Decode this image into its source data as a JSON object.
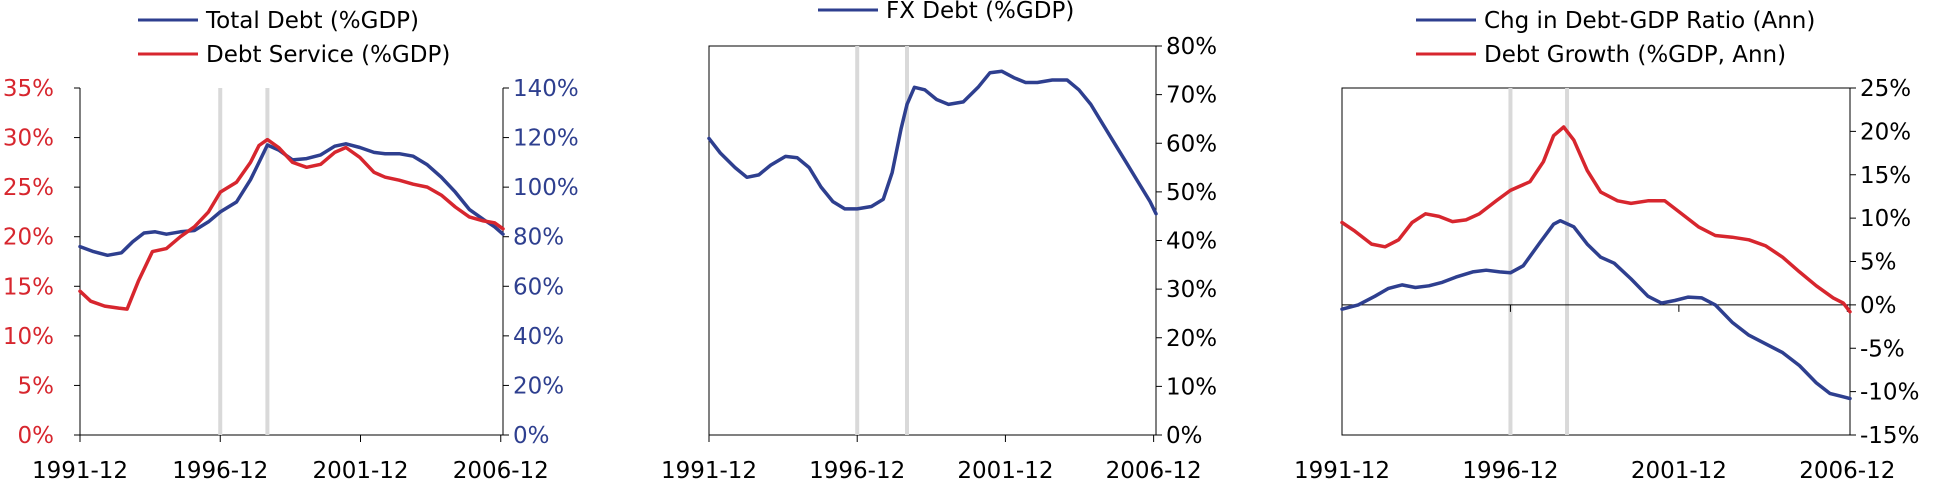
{
  "colors": {
    "blue": "#2E3F8F",
    "red": "#D7262E",
    "axis": "#000000",
    "vline": "#D9D9D9"
  },
  "chart_data": [
    {
      "type": "line",
      "legend_placement": "top",
      "x_ticks": [
        "1991-12",
        "1996-12",
        "2001-12",
        "2006-12"
      ],
      "x_range": [
        1991.92,
        2007.0
      ],
      "vertical_lines": [
        1996.92,
        1998.6
      ],
      "axes": {
        "left": {
          "ticks": [
            "0%",
            "5%",
            "10%",
            "15%",
            "20%",
            "25%",
            "30%",
            "35%"
          ],
          "ylim": [
            0,
            35
          ]
        },
        "right": {
          "ticks": [
            "0%",
            "20%",
            "40%",
            "60%",
            "80%",
            "100%",
            "120%",
            "140%"
          ],
          "ylim": [
            0,
            140
          ]
        }
      },
      "series": [
        {
          "name": "Total Debt (%GDP)",
          "axis": "right",
          "color": "blue",
          "points": [
            [
              1991.92,
              76
            ],
            [
              1992.4,
              74
            ],
            [
              1992.9,
              72.5
            ],
            [
              1993.4,
              73.5
            ],
            [
              1993.8,
              78
            ],
            [
              1994.2,
              81.5
            ],
            [
              1994.6,
              82
            ],
            [
              1995.0,
              81
            ],
            [
              1995.5,
              82
            ],
            [
              1996.0,
              82.5
            ],
            [
              1996.5,
              86
            ],
            [
              1996.92,
              90
            ],
            [
              1997.5,
              94
            ],
            [
              1998.0,
              103
            ],
            [
              1998.3,
              110
            ],
            [
              1998.6,
              117
            ],
            [
              1999.0,
              115
            ],
            [
              1999.5,
              111
            ],
            [
              2000.0,
              111.5
            ],
            [
              2000.5,
              113
            ],
            [
              2001.0,
              116.5
            ],
            [
              2001.4,
              117.5
            ],
            [
              2001.9,
              116
            ],
            [
              2002.4,
              114
            ],
            [
              2002.8,
              113.5
            ],
            [
              2003.3,
              113.5
            ],
            [
              2003.8,
              112.5
            ],
            [
              2004.3,
              109
            ],
            [
              2004.8,
              104
            ],
            [
              2005.3,
              98
            ],
            [
              2005.8,
              91
            ],
            [
              2006.3,
              87
            ],
            [
              2006.7,
              84
            ],
            [
              2007.0,
              81
            ]
          ]
        },
        {
          "name": "Debt Service (%GDP)",
          "axis": "left",
          "color": "red",
          "points": [
            [
              1991.92,
              14.5
            ],
            [
              1992.3,
              13.5
            ],
            [
              1992.8,
              13
            ],
            [
              1993.3,
              12.8
            ],
            [
              1993.6,
              12.7
            ],
            [
              1994.0,
              15.5
            ],
            [
              1994.5,
              18.5
            ],
            [
              1995.0,
              18.8
            ],
            [
              1995.5,
              20.0
            ],
            [
              1996.0,
              21.0
            ],
            [
              1996.5,
              22.5
            ],
            [
              1996.92,
              24.5
            ],
            [
              1997.5,
              25.5
            ],
            [
              1998.0,
              27.5
            ],
            [
              1998.3,
              29.2
            ],
            [
              1998.6,
              29.8
            ],
            [
              1999.0,
              29.0
            ],
            [
              1999.5,
              27.5
            ],
            [
              2000.0,
              27
            ],
            [
              2000.5,
              27.3
            ],
            [
              2001.0,
              28.5
            ],
            [
              2001.4,
              29.0
            ],
            [
              2001.9,
              28.0
            ],
            [
              2002.4,
              26.5
            ],
            [
              2002.8,
              26.0
            ],
            [
              2003.3,
              25.7
            ],
            [
              2003.8,
              25.3
            ],
            [
              2004.3,
              25.0
            ],
            [
              2004.8,
              24.2
            ],
            [
              2005.3,
              23.0
            ],
            [
              2005.8,
              22.0
            ],
            [
              2006.3,
              21.6
            ],
            [
              2006.7,
              21.4
            ],
            [
              2007.0,
              20.8
            ]
          ]
        }
      ]
    },
    {
      "type": "line",
      "legend_placement": "top",
      "x_ticks": [
        "1991-12",
        "1996-12",
        "2001-12",
        "2006-12"
      ],
      "x_range": [
        1991.92,
        2007.0
      ],
      "vertical_lines": [
        1996.92,
        1998.6
      ],
      "axes": {
        "right": {
          "ticks": [
            "0%",
            "10%",
            "20%",
            "30%",
            "40%",
            "50%",
            "60%",
            "70%",
            "80%"
          ],
          "ylim": [
            0,
            80
          ]
        }
      },
      "series": [
        {
          "name": "FX Debt (%GDP)",
          "axis": "right",
          "color": "blue",
          "points": [
            [
              1991.92,
              61
            ],
            [
              1992.3,
              58
            ],
            [
              1992.8,
              55
            ],
            [
              1993.2,
              53
            ],
            [
              1993.6,
              53.5
            ],
            [
              1994.0,
              55.5
            ],
            [
              1994.5,
              57.3
            ],
            [
              1994.9,
              57
            ],
            [
              1995.3,
              55
            ],
            [
              1995.7,
              51
            ],
            [
              1996.1,
              48
            ],
            [
              1996.5,
              46.5
            ],
            [
              1996.92,
              46.5
            ],
            [
              1997.4,
              47
            ],
            [
              1997.8,
              48.5
            ],
            [
              1998.1,
              54
            ],
            [
              1998.4,
              63
            ],
            [
              1998.6,
              68
            ],
            [
              1998.85,
              71.5
            ],
            [
              1999.2,
              71
            ],
            [
              1999.6,
              69
            ],
            [
              2000.0,
              68
            ],
            [
              2000.5,
              68.5
            ],
            [
              2001.0,
              71.5
            ],
            [
              2001.4,
              74.5
            ],
            [
              2001.8,
              74.8
            ],
            [
              2002.2,
              73.5
            ],
            [
              2002.6,
              72.5
            ],
            [
              2003.0,
              72.5
            ],
            [
              2003.5,
              73
            ],
            [
              2004.0,
              73
            ],
            [
              2004.4,
              71
            ],
            [
              2004.8,
              68
            ],
            [
              2005.2,
              64
            ],
            [
              2005.6,
              60
            ],
            [
              2006.0,
              56
            ],
            [
              2006.4,
              52
            ],
            [
              2006.8,
              48
            ],
            [
              2007.0,
              45.5
            ]
          ]
        }
      ]
    },
    {
      "type": "line",
      "legend_placement": "top",
      "x_ticks": [
        "1991-12",
        "1996-12",
        "2001-12",
        "2006-12"
      ],
      "x_range": [
        1991.92,
        2007.0
      ],
      "vertical_lines": [
        1996.92,
        1998.6
      ],
      "axes": {
        "right": {
          "ticks": [
            "-15%",
            "-10%",
            "-5%",
            "0%",
            "5%",
            "10%",
            "15%",
            "20%",
            "25%"
          ],
          "ylim": [
            -15,
            25
          ]
        }
      },
      "series": [
        {
          "name": "Chg in Debt-GDP Ratio (Ann)",
          "axis": "right",
          "color": "blue",
          "points": [
            [
              1991.92,
              -0.5
            ],
            [
              1992.4,
              0
            ],
            [
              1992.9,
              1.0
            ],
            [
              1993.3,
              1.9
            ],
            [
              1993.7,
              2.3
            ],
            [
              1994.1,
              2.0
            ],
            [
              1994.5,
              2.2
            ],
            [
              1994.9,
              2.6
            ],
            [
              1995.3,
              3.2
            ],
            [
              1995.8,
              3.8
            ],
            [
              1996.2,
              4.0
            ],
            [
              1996.6,
              3.8
            ],
            [
              1996.92,
              3.7
            ],
            [
              1997.3,
              4.5
            ],
            [
              1997.8,
              7.2
            ],
            [
              1998.2,
              9.3
            ],
            [
              1998.4,
              9.7
            ],
            [
              1998.8,
              9.0
            ],
            [
              1999.2,
              7.0
            ],
            [
              1999.6,
              5.5
            ],
            [
              2000.0,
              4.8
            ],
            [
              2000.5,
              3.0
            ],
            [
              2001.0,
              1.0
            ],
            [
              2001.4,
              0.2
            ],
            [
              2001.8,
              0.5
            ],
            [
              2002.2,
              0.9
            ],
            [
              2002.6,
              0.8
            ],
            [
              2003.0,
              0
            ],
            [
              2003.5,
              -2.0
            ],
            [
              2004.0,
              -3.5
            ],
            [
              2004.5,
              -4.5
            ],
            [
              2005.0,
              -5.5
            ],
            [
              2005.5,
              -7.0
            ],
            [
              2006.0,
              -9.0
            ],
            [
              2006.4,
              -10.2
            ],
            [
              2006.8,
              -10.6
            ],
            [
              2007.0,
              -10.8
            ]
          ]
        },
        {
          "name": "Debt Growth (%GDP, Ann)",
          "axis": "right",
          "color": "red",
          "points": [
            [
              1991.92,
              9.5
            ],
            [
              1992.3,
              8.5
            ],
            [
              1992.8,
              7.0
            ],
            [
              1993.2,
              6.7
            ],
            [
              1993.6,
              7.5
            ],
            [
              1994.0,
              9.5
            ],
            [
              1994.4,
              10.5
            ],
            [
              1994.8,
              10.2
            ],
            [
              1995.2,
              9.6
            ],
            [
              1995.6,
              9.8
            ],
            [
              1996.0,
              10.5
            ],
            [
              1996.5,
              12.0
            ],
            [
              1996.92,
              13.2
            ],
            [
              1997.5,
              14.2
            ],
            [
              1997.9,
              16.5
            ],
            [
              1998.2,
              19.5
            ],
            [
              1998.5,
              20.5
            ],
            [
              1998.8,
              19.0
            ],
            [
              1999.2,
              15.5
            ],
            [
              1999.6,
              13.0
            ],
            [
              2000.1,
              12.0
            ],
            [
              2000.5,
              11.7
            ],
            [
              2001.0,
              12.0
            ],
            [
              2001.5,
              12.0
            ],
            [
              2002.0,
              10.5
            ],
            [
              2002.5,
              9.0
            ],
            [
              2003.0,
              8.0
            ],
            [
              2003.5,
              7.8
            ],
            [
              2004.0,
              7.5
            ],
            [
              2004.5,
              6.8
            ],
            [
              2005.0,
              5.5
            ],
            [
              2005.5,
              3.8
            ],
            [
              2006.0,
              2.2
            ],
            [
              2006.5,
              0.8
            ],
            [
              2006.8,
              0.2
            ],
            [
              2007.0,
              -0.8
            ]
          ]
        }
      ]
    }
  ]
}
